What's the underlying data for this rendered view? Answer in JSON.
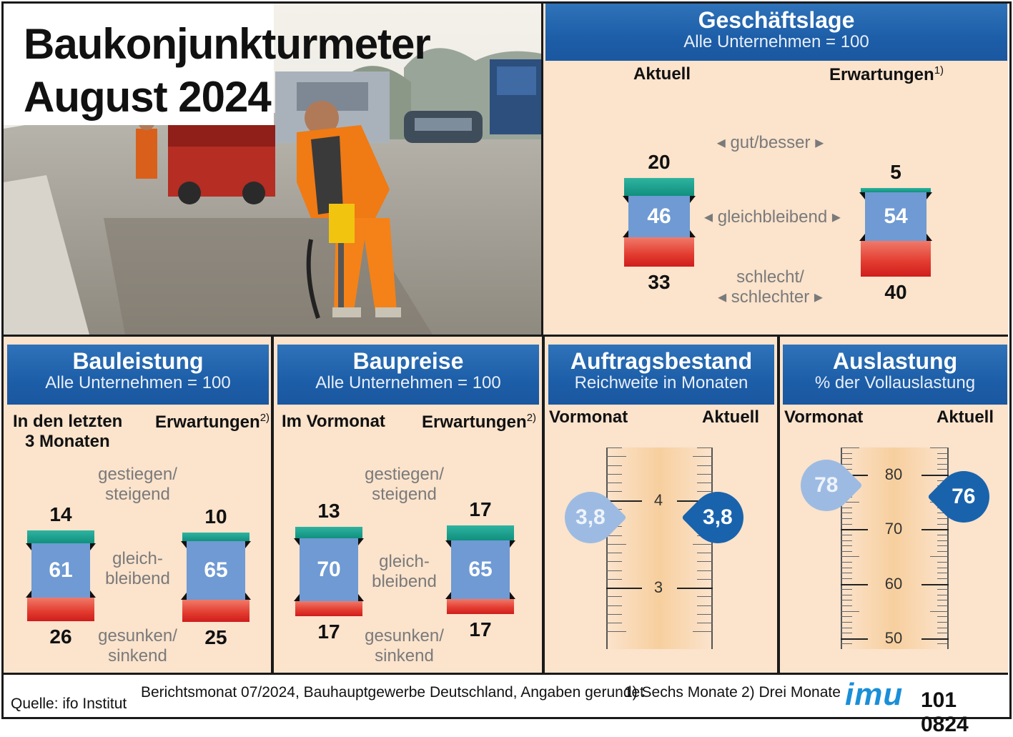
{
  "title": {
    "line1": "Baukonjunkturmeter",
    "line2": "August 2024"
  },
  "geschaeftslage": {
    "title": "Geschäftslage",
    "subtitle": "Alle Unternehmen = 100",
    "col_left": "Aktuell",
    "col_right": "Erwartungen",
    "col_right_note": "1)",
    "cat_top": "gut/besser",
    "cat_mid": "gleichbleibend",
    "cat_bot1": "schlecht/",
    "cat_bot2": "schlechter"
  },
  "bauleistung": {
    "title": "Bauleistung",
    "subtitle": "Alle Unternehmen = 100",
    "col_left1": "In den letzten",
    "col_left2": "3 Monaten",
    "col_right": "Erwartungen",
    "col_right_note": "2)",
    "cat_top1": "gestiegen/",
    "cat_top2": "steigend",
    "cat_mid1": "gleich-",
    "cat_mid2": "bleibend",
    "cat_bot1": "gesunken/",
    "cat_bot2": "sinkend"
  },
  "baupreise": {
    "title": "Baupreise",
    "subtitle": "Alle Unternehmen = 100",
    "col_left": "Im Vormonat",
    "col_right": "Erwartungen",
    "col_right_note": "2)",
    "cat_top1": "gestiegen/",
    "cat_top2": "steigend",
    "cat_mid1": "gleich-",
    "cat_mid2": "bleibend",
    "cat_bot1": "gesunken/",
    "cat_bot2": "sinkend"
  },
  "auftragsbestand": {
    "title": "Auftragsbestand",
    "subtitle": "Reichweite in Monaten",
    "col_left": "Vormonat",
    "col_right": "Aktuell",
    "tick_labels": [
      "4",
      "3"
    ]
  },
  "auslastung": {
    "title": "Auslastung",
    "subtitle": "% der Vollauslastung",
    "col_left": "Vormonat",
    "col_right": "Aktuell",
    "tick_labels": [
      "80",
      "70",
      "60",
      "50"
    ]
  },
  "footer": {
    "source": "Quelle: ifo Institut",
    "note": "Berichtsmonat 07/2024, Bauhauptgewerbe Deutschland, Angaben gerundet",
    "fn1": "1) Sechs Monate",
    "fn2": "2) Drei Monate",
    "logo": "imu",
    "code": "101 0824"
  },
  "colors": {
    "header_blue": "#1d5ea8",
    "panel_bg": "#fbe3cc",
    "bar_top": "#10907e",
    "bar_mid": "#6f9ad3",
    "bar_bot": "#e23b2e",
    "drop_prev": "#9dbbe2",
    "drop_curr": "#1963ad"
  },
  "chart_data": [
    {
      "type": "bar",
      "name": "Geschäftslage",
      "categories": [
        "Aktuell",
        "Erwartungen"
      ],
      "series": [
        {
          "name": "gut/besser",
          "values": [
            20,
            5
          ]
        },
        {
          "name": "gleichbleibend",
          "values": [
            46,
            54
          ]
        },
        {
          "name": "schlecht/schlechter",
          "values": [
            33,
            40
          ]
        }
      ]
    },
    {
      "type": "bar",
      "name": "Bauleistung",
      "categories": [
        "In den letzten 3 Monaten",
        "Erwartungen"
      ],
      "series": [
        {
          "name": "gestiegen/steigend",
          "values": [
            14,
            10
          ]
        },
        {
          "name": "gleichbleibend",
          "values": [
            61,
            65
          ]
        },
        {
          "name": "gesunken/sinkend",
          "values": [
            26,
            25
          ]
        }
      ]
    },
    {
      "type": "bar",
      "name": "Baupreise",
      "categories": [
        "Im Vormonat",
        "Erwartungen"
      ],
      "series": [
        {
          "name": "gestiegen/steigend",
          "values": [
            13,
            17
          ]
        },
        {
          "name": "gleichbleibend",
          "values": [
            70,
            65
          ]
        },
        {
          "name": "gesunken/sinkend",
          "values": [
            17,
            17
          ]
        }
      ]
    },
    {
      "type": "scatter",
      "name": "Auftragsbestand",
      "categories": [
        "Vormonat",
        "Aktuell"
      ],
      "values": [
        3.8,
        3.8
      ],
      "value_labels": [
        "3,8",
        "3,8"
      ],
      "ylim": [
        2.3,
        4.6
      ]
    },
    {
      "type": "scatter",
      "name": "Auslastung",
      "categories": [
        "Vormonat",
        "Aktuell"
      ],
      "values": [
        78,
        76
      ],
      "value_labels": [
        "78",
        "76"
      ],
      "ylim": [
        48,
        85
      ]
    }
  ]
}
